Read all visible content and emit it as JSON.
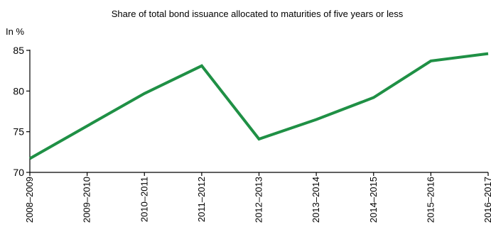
{
  "chart_data": {
    "type": "line",
    "title": "Share of total bond issuance allocated to maturities of five years or less",
    "ylabel": "In %",
    "xlabel": "",
    "categories": [
      "2008–2009",
      "2009–2010",
      "2010–2011",
      "2011–2012",
      "2012–2013",
      "2013–2014",
      "2014–2015",
      "2015–2016",
      "2016–2017"
    ],
    "series": [
      {
        "values": [
          71.7,
          75.7,
          79.7,
          83.1,
          74.1,
          76.5,
          79.2,
          83.7,
          84.6
        ]
      }
    ],
    "ylim": [
      70,
      85
    ],
    "yticks": [
      70,
      75,
      80,
      85
    ],
    "grid": false,
    "colors": {
      "line": "#1f9045",
      "axis": "#000000",
      "text": "#000000"
    }
  }
}
